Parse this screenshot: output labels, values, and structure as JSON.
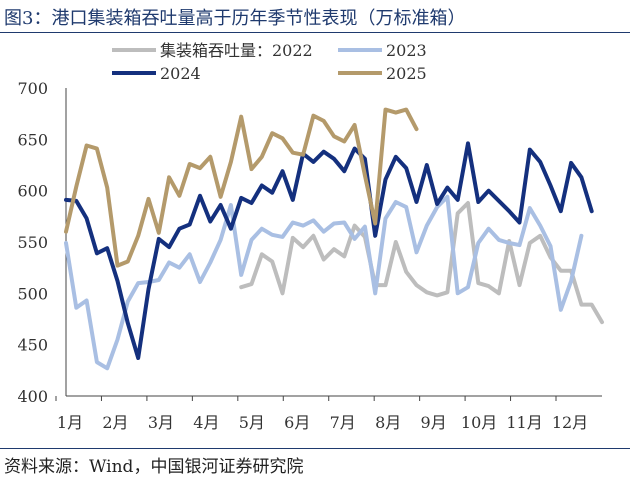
{
  "figure_title": "图3：港口集装箱吞吐量高于历年季节性表现（万标准箱）",
  "source_note": "资料来源：Wind，中国银河证券研究院",
  "chart_data": {
    "type": "line",
    "title": "",
    "xlabel": "",
    "ylabel": "",
    "ylim": [
      400,
      700
    ],
    "yticks": [
      400,
      450,
      500,
      550,
      600,
      650,
      700
    ],
    "xtick_labels": [
      "1月",
      "2月",
      "3月",
      "4月",
      "5月",
      "6月",
      "7月",
      "8月",
      "9月",
      "10月",
      "11月",
      "12月"
    ],
    "week_range": [
      1,
      53
    ],
    "grid": false,
    "legend": "top",
    "series": [
      {
        "name": "集装箱吞吐量：2022",
        "color": "#bdbdbd",
        "start_week": 18,
        "values": [
          506,
          509,
          538,
          531,
          500,
          554,
          545,
          556,
          533,
          543,
          536,
          566,
          555,
          508,
          508,
          550,
          521,
          508,
          501,
          498,
          501,
          578,
          588,
          510,
          507,
          500,
          551,
          508,
          549,
          556,
          535,
          522,
          522,
          489,
          489,
          472
        ]
      },
      {
        "name": "2023",
        "color": "#a9bfe3",
        "start_week": 1,
        "values": [
          549,
          486,
          493,
          433,
          427,
          455,
          492,
          510,
          511,
          513,
          530,
          525,
          538,
          511,
          530,
          552,
          586,
          518,
          552,
          563,
          557,
          555,
          569,
          566,
          571,
          560,
          568,
          569,
          553,
          565,
          500,
          573,
          589,
          584,
          540,
          566,
          584,
          594,
          500,
          506,
          549,
          563,
          552,
          549,
          547,
          583,
          566,
          546,
          484,
          512,
          556
        ]
      },
      {
        "name": "2024",
        "color": "#14307e",
        "start_week": 1,
        "values": [
          591,
          590,
          573,
          539,
          544,
          512,
          471,
          437,
          504,
          553,
          545,
          563,
          567,
          595,
          570,
          586,
          563,
          593,
          588,
          605,
          598,
          619,
          591,
          636,
          628,
          638,
          631,
          619,
          641,
          631,
          556,
          611,
          633,
          622,
          589,
          625,
          587,
          603,
          591,
          646,
          589,
          600,
          590,
          580,
          569,
          640,
          628,
          605,
          580,
          627,
          613,
          580
        ]
      },
      {
        "name": "2025",
        "color": "#b49a6b",
        "start_week": 1,
        "values": [
          560,
          604,
          644,
          641,
          603,
          527,
          531,
          556,
          592,
          559,
          613,
          595,
          626,
          622,
          633,
          594,
          628,
          672,
          621,
          633,
          656,
          651,
          637,
          635,
          673,
          668,
          653,
          648,
          664,
          615,
          568,
          679,
          676,
          679,
          660
        ]
      }
    ]
  }
}
